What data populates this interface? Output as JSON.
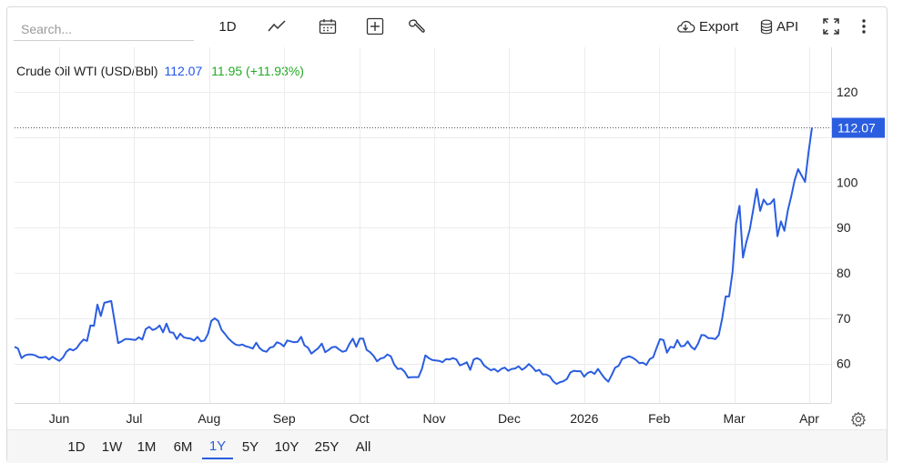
{
  "toolbar": {
    "search_placeholder": "Search...",
    "interval_label": "1D",
    "export_label": "Export",
    "api_label": "API",
    "icons": [
      "line-chart-icon",
      "calendar-icon",
      "add-indicator-icon",
      "wrench-icon",
      "cloud-download-icon",
      "database-icon",
      "fullscreen-icon",
      "more-vertical-icon"
    ]
  },
  "legend": {
    "name": "Crude Oil WTI (USD/Bbl)",
    "last": "112.07",
    "change": "11.95 (+11.93%)"
  },
  "colors": {
    "series": "#2a5de0",
    "change_positive": "#22aa22",
    "grid": "#ececec",
    "last_label_bg": "#2a5de0"
  },
  "ranges": {
    "items": [
      "1D",
      "1W",
      "1M",
      "6M",
      "1Y",
      "5Y",
      "10Y",
      "25Y",
      "All"
    ],
    "active": "1Y"
  },
  "chart_data": {
    "type": "line",
    "title": "Crude Oil WTI (USD/Bbl)",
    "xlabel": "",
    "ylabel": "",
    "ylim": [
      51.5,
      129.8
    ],
    "yticks": [
      60,
      70,
      80,
      90,
      100,
      120
    ],
    "xticks": [
      "Jun",
      "Jul",
      "Aug",
      "Sep",
      "Oct",
      "Nov",
      "Dec",
      "2026",
      "Feb",
      "Mar",
      "Apr"
    ],
    "grid": true,
    "last_value": 112.07,
    "series": [
      {
        "values": [
          63.7,
          63.3,
          61.2,
          61.8,
          62.0,
          62.0,
          61.8,
          61.4,
          61.3,
          61.5,
          60.9,
          61.5,
          61.0,
          60.6,
          61.3,
          62.6,
          63.2,
          62.9,
          63.4,
          64.5,
          65.3,
          65.0,
          68.4,
          68.3,
          73.0,
          70.5,
          73.4,
          73.6,
          73.8,
          69.2,
          64.5,
          64.9,
          65.4,
          65.4,
          65.3,
          65.2,
          65.8,
          65.3,
          67.6,
          68.1,
          67.4,
          67.7,
          68.4,
          66.9,
          68.8,
          66.9,
          66.8,
          65.4,
          66.6,
          65.8,
          65.6,
          65.5,
          65.1,
          65.9,
          64.9,
          65.1,
          66.5,
          69.4,
          70.0,
          69.4,
          67.4,
          66.5,
          65.5,
          64.8,
          64.2,
          64.0,
          64.2,
          63.8,
          63.6,
          63.3,
          64.6,
          63.4,
          62.8,
          62.6,
          63.5,
          63.7,
          64.7,
          64.4,
          63.8,
          65.1,
          64.9,
          64.7,
          64.8,
          65.9,
          64.0,
          63.5,
          62.2,
          62.8,
          63.4,
          64.4,
          62.5,
          63.0,
          63.6,
          63.7,
          63.1,
          62.6,
          62.8,
          64.3,
          65.5,
          63.7,
          65.5,
          65.5,
          63.0,
          62.5,
          61.7,
          60.5,
          61.1,
          61.3,
          62.0,
          61.6,
          59.8,
          58.8,
          58.9,
          58.2,
          56.9,
          57.0,
          57.0,
          57.0,
          58.8,
          61.8,
          61.2,
          60.8,
          60.7,
          60.6,
          60.3,
          61.0,
          60.9,
          61.2,
          60.9,
          59.6,
          59.9,
          60.3,
          58.6,
          60.9,
          61.2,
          60.8,
          59.6,
          59.0,
          58.5,
          58.8,
          58.2,
          58.8,
          59.1,
          58.4,
          58.8,
          58.9,
          59.4,
          58.6,
          59.1,
          59.9,
          59.2,
          58.3,
          58.6,
          57.6,
          57.6,
          57.2,
          56.1,
          55.5,
          55.9,
          56.1,
          56.6,
          58.0,
          58.4,
          58.3,
          58.3,
          57.1,
          57.9,
          58.2,
          57.7,
          58.8,
          57.7,
          56.7,
          56.0,
          57.5,
          59.1,
          59.5,
          61.0,
          61.3,
          61.6,
          61.3,
          60.8,
          60.1,
          60.2,
          59.7,
          61.0,
          61.4,
          63.5,
          65.4,
          65.2,
          62.4,
          63.7,
          63.5,
          65.2,
          63.8,
          63.9,
          64.9,
          63.7,
          63.1,
          64.4,
          66.3,
          66.2,
          65.6,
          65.6,
          65.4,
          66.3,
          70.0,
          74.8,
          74.8,
          80.3,
          90.9,
          94.8,
          83.4,
          86.8,
          89.6,
          94.0,
          98.5,
          93.7,
          96.2,
          95.1,
          95.3,
          96.3,
          88.1,
          91.4,
          89.3,
          93.8,
          96.9,
          100.5,
          102.9,
          101.5,
          100.1,
          106.6,
          112.1
        ]
      }
    ]
  }
}
